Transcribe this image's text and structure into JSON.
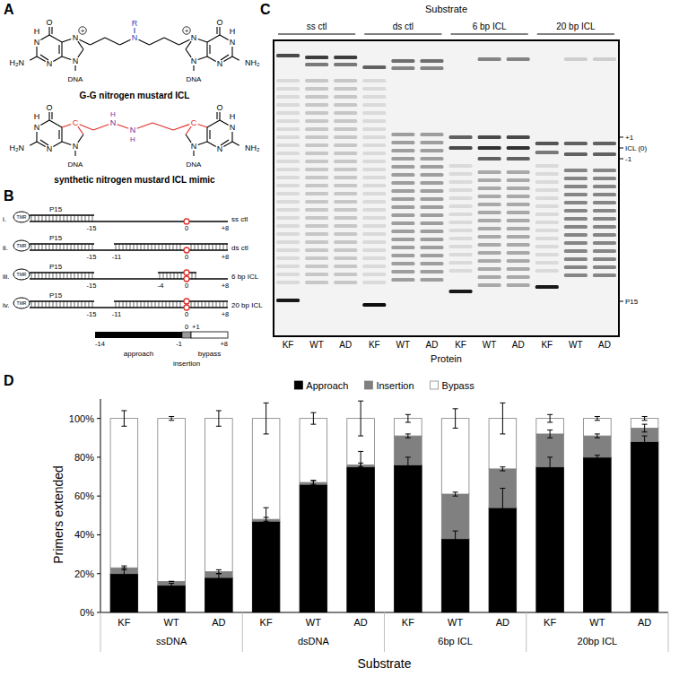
{
  "chart_data": {
    "type": "bar",
    "stacked": true,
    "x_label": "Substrate",
    "y_label": "Primers extended",
    "categories": [
      "KF",
      "WT",
      "AD",
      "KF",
      "WT",
      "AD",
      "KF",
      "WT",
      "AD",
      "KF",
      "WT",
      "AD"
    ],
    "group_labels": [
      "ssDNA",
      "dsDNA",
      "6bp ICL",
      "20bp ICL"
    ],
    "series": [
      {
        "name": "Approach",
        "color": "#000000",
        "values": [
          20,
          14,
          18,
          47,
          66,
          75,
          76,
          38,
          54,
          75,
          80,
          88
        ],
        "errors": [
          3,
          1,
          2,
          7,
          2,
          8,
          4,
          4,
          10,
          5,
          1,
          3
        ]
      },
      {
        "name": "Insertion",
        "color": "#808080",
        "values": [
          3,
          2,
          3,
          1,
          1,
          1,
          15,
          23,
          20,
          17,
          11,
          7
        ],
        "errors": [
          1,
          0,
          1,
          1,
          1,
          1,
          1,
          1,
          1,
          2,
          1,
          2
        ]
      },
      {
        "name": "Bypass",
        "color": "#ffffff",
        "values": [
          77,
          84,
          79,
          52,
          33,
          24,
          9,
          39,
          26,
          8,
          9,
          5
        ],
        "errors": [
          4,
          1,
          4,
          8,
          3,
          9,
          2,
          5,
          8,
          2,
          1,
          1
        ]
      }
    ],
    "ylim": [
      0,
      110
    ],
    "yticks": [
      {
        "value": 0,
        "label": "0%"
      },
      {
        "value": 20,
        "label": "20%"
      },
      {
        "value": 40,
        "label": "40%"
      },
      {
        "value": 60,
        "label": "60%"
      },
      {
        "value": 80,
        "label": "80%"
      },
      {
        "value": 100,
        "label": "100%"
      }
    ],
    "grid": false,
    "legend": "top"
  },
  "figure": {
    "A": {
      "letter": "A",
      "guanine": [
        "O",
        "H",
        "N",
        "N",
        "N",
        "DNA"
      ],
      "amine": [
        "H₂N",
        "NH₂"
      ],
      "structures": [
        {
          "caption": "G-G nitrogen mustard ICL",
          "n7": "N",
          "charge": "+",
          "linker": [
            "N",
            "R"
          ]
        },
        {
          "caption": "synthetic nitrogen mustard ICL mimic",
          "n7": "C",
          "linker": [
            "N",
            "H",
            "N",
            "H"
          ]
        }
      ]
    },
    "B": {
      "letter": "B",
      "tag": "TMR",
      "primer": "P15",
      "rows": [
        {
          "numeral": "i.",
          "label": "ss ctl",
          "marks": [
            "-15",
            "0",
            "+8"
          ]
        },
        {
          "numeral": "ii.",
          "label": "ds ctl",
          "marks": [
            "-15",
            "-11",
            "0",
            "+8"
          ]
        },
        {
          "numeral": "iii.",
          "label": "6 bp ICL",
          "marks": [
            "-15",
            "-4",
            "0",
            "+8"
          ]
        },
        {
          "numeral": "iv.",
          "label": "20 bp ICL",
          "marks": [
            "-15",
            "-11",
            "0",
            "+8"
          ]
        }
      ],
      "scale_marks": [
        "-14",
        "-1",
        "0",
        "+1",
        "+8"
      ],
      "regions": [
        "approach",
        "insertion",
        "bypass"
      ]
    },
    "C": {
      "letter": "C",
      "header": "Substrate",
      "groups": [
        "ss ctl",
        "ds ctl",
        "6 bp ICL",
        "20 bp ICL"
      ],
      "lanes": [
        "KF",
        "WT",
        "AD"
      ],
      "x_label": "Protein",
      "markers": [
        "+1",
        "ICL (0)",
        "-1",
        "P15"
      ]
    },
    "D": {
      "letter": "D"
    }
  }
}
